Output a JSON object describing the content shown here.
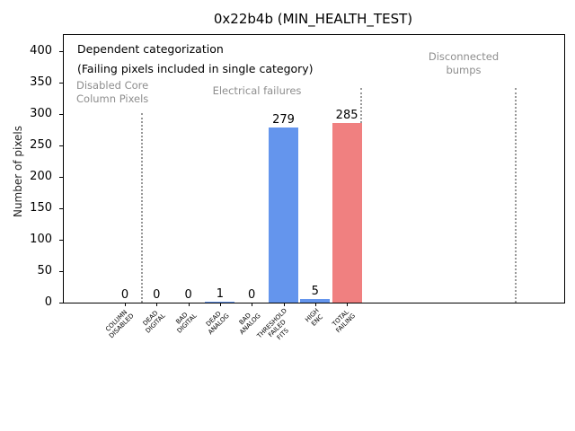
{
  "chart_data": {
    "type": "bar",
    "title": "0x22b4b (MIN_HEALTH_TEST)",
    "ylabel": "Number of pixels",
    "ylim": [
      0,
      420
    ],
    "yticks": [
      0,
      50,
      100,
      150,
      200,
      250,
      300,
      350,
      400
    ],
    "grid": false,
    "legend": "none",
    "categories": [
      "COLUMN\nDISABLED",
      "DEAD\nDIGITAL",
      "BAD\nDIGITAL",
      "DEAD\nANALOG",
      "BAD\nANALOG",
      "THRESHOLD\nFAILED\nFITS",
      "HIGH\nENC",
      "TOTAL\nFAILING"
    ],
    "values": [
      0,
      0,
      0,
      1,
      0,
      279,
      5,
      285
    ],
    "bar_labels": [
      "0",
      "0",
      "0",
      "1",
      "0",
      "279",
      "5",
      "285"
    ],
    "bar_colors": [
      "#6495ed",
      "#6495ed",
      "#6495ed",
      "#6495ed",
      "#6495ed",
      "#6495ed",
      "#6495ed",
      "#f08080"
    ],
    "accent_blue": "#6495ed",
    "accent_red": "#f08080",
    "notes": [
      "Dependent categorization",
      "(Failing pixels included in single category)"
    ],
    "sections": [
      "Disabled Core\nColumn Pixels",
      "Electrical failures",
      "Disconnected\nbumps"
    ]
  }
}
